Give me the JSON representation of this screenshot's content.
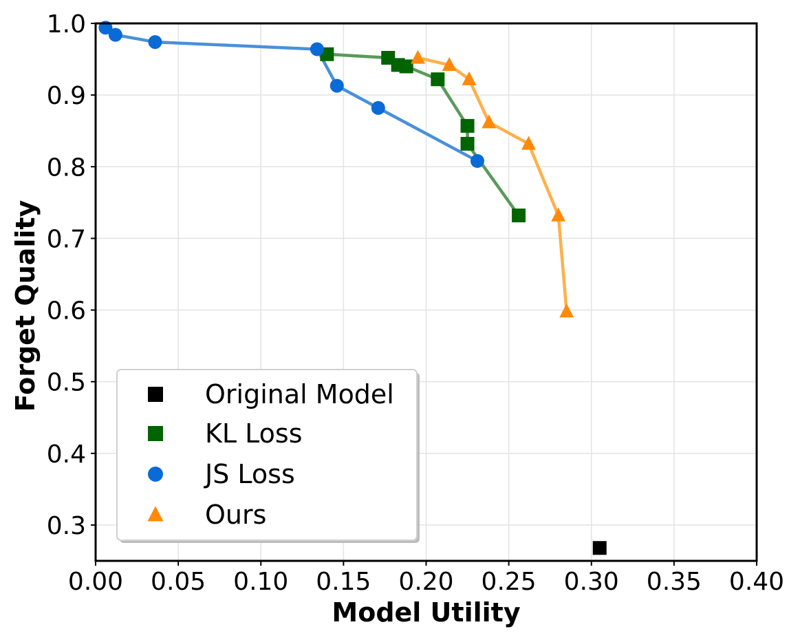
{
  "chart_data": {
    "type": "line",
    "title": "",
    "xlabel": "Model Utility",
    "ylabel": "Forget Quality",
    "xlim": [
      0.0,
      0.4
    ],
    "ylim": [
      0.25,
      1.0
    ],
    "grid": true,
    "legend_position": "lower-left",
    "x_ticks": [
      "0.00",
      "0.05",
      "0.10",
      "0.15",
      "0.20",
      "0.25",
      "0.30",
      "0.35",
      "0.40"
    ],
    "y_ticks": [
      "0.3",
      "0.4",
      "0.5",
      "0.6",
      "0.7",
      "0.8",
      "0.9",
      "1.0"
    ],
    "series": [
      {
        "name": "Original Model",
        "marker": "square",
        "color": "#000000",
        "line": false,
        "points": [
          [
            0.305,
            0.268
          ]
        ]
      },
      {
        "name": "KL Loss",
        "marker": "square",
        "color": "#006400",
        "line_color": "#5a9a5a",
        "line": true,
        "points": [
          [
            0.14,
            0.957
          ],
          [
            0.177,
            0.952
          ],
          [
            0.183,
            0.942
          ],
          [
            0.188,
            0.94
          ],
          [
            0.207,
            0.922
          ],
          [
            0.225,
            0.857
          ],
          [
            0.225,
            0.832
          ],
          [
            0.256,
            0.732
          ]
        ]
      },
      {
        "name": "JS Loss",
        "marker": "circle",
        "color": "#0a6ad6",
        "line_color": "#4a90d9",
        "line": true,
        "points": [
          [
            0.006,
            0.994
          ],
          [
            0.012,
            0.984
          ],
          [
            0.036,
            0.974
          ],
          [
            0.134,
            0.964
          ],
          [
            0.146,
            0.913
          ],
          [
            0.171,
            0.882
          ],
          [
            0.231,
            0.808
          ]
        ]
      },
      {
        "name": "Ours",
        "marker": "triangle",
        "color": "#ff8a0a",
        "line_color": "#ffb04a",
        "line": true,
        "points": [
          [
            0.195,
            0.952
          ],
          [
            0.214,
            0.942
          ],
          [
            0.226,
            0.922
          ],
          [
            0.238,
            0.862
          ],
          [
            0.262,
            0.832
          ],
          [
            0.28,
            0.732
          ],
          [
            0.285,
            0.598
          ]
        ]
      }
    ]
  }
}
